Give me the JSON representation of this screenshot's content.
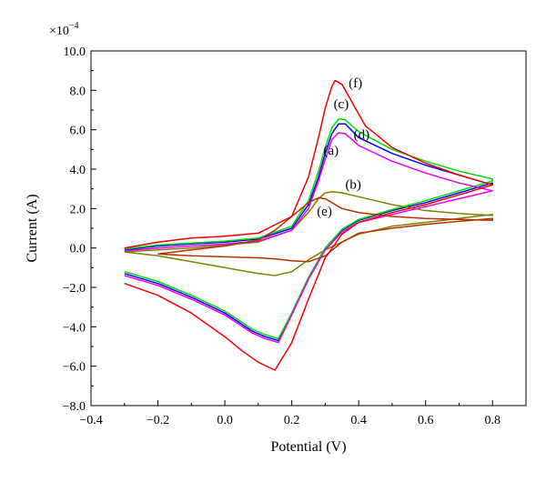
{
  "chart_data": {
    "type": "line",
    "title": "",
    "xlabel": "Potential (V)",
    "ylabel": "Current (A)",
    "y_multiplier": "×10",
    "y_multiplier_exponent": "−4",
    "xlim": [
      -0.4,
      0.9
    ],
    "ylim": [
      -8.0,
      10.0
    ],
    "x_ticks": [
      -0.4,
      -0.2,
      0.0,
      0.2,
      0.4,
      0.6,
      0.8
    ],
    "x_tick_labels": [
      "−0.4",
      "−0.2",
      "0.0",
      "0.2",
      "0.4",
      "0.6",
      "0.8"
    ],
    "y_ticks": [
      -8,
      -6,
      -4,
      -2,
      0,
      2,
      4,
      6,
      8,
      10
    ],
    "y_tick_labels": [
      "−8.0",
      "−6.0",
      "−4.0",
      "−2.0",
      "0.0",
      "2.0",
      "4.0",
      "6.0",
      "8.0",
      "10.0"
    ],
    "grid": false,
    "series": [
      {
        "name": "(a)",
        "color": "#0000ff",
        "x": [
          -0.3,
          -0.2,
          -0.1,
          0.0,
          0.1,
          0.2,
          0.25,
          0.28,
          0.3,
          0.32,
          0.34,
          0.36,
          0.4,
          0.5,
          0.6,
          0.7,
          0.8,
          0.8,
          0.7,
          0.6,
          0.5,
          0.4,
          0.35,
          0.3,
          0.25,
          0.2,
          0.16,
          0.12,
          0.08,
          0.0,
          -0.1,
          -0.2,
          -0.3
        ],
        "y": [
          -0.1,
          0.1,
          0.2,
          0.3,
          0.45,
          1.0,
          2.2,
          3.6,
          4.8,
          5.8,
          6.3,
          6.3,
          5.6,
          4.8,
          4.2,
          3.7,
          3.2,
          3.3,
          2.8,
          2.3,
          1.9,
          1.4,
          0.9,
          0.0,
          -1.5,
          -3.3,
          -4.7,
          -4.5,
          -4.2,
          -3.3,
          -2.5,
          -1.8,
          -1.3
        ]
      },
      {
        "name": "(b)",
        "color": "#808000",
        "x": [
          -0.3,
          -0.2,
          -0.1,
          0.0,
          0.1,
          0.2,
          0.25,
          0.28,
          0.3,
          0.32,
          0.35,
          0.4,
          0.5,
          0.6,
          0.7,
          0.8,
          0.8,
          0.7,
          0.6,
          0.5,
          0.4,
          0.3,
          0.25,
          0.2,
          0.15,
          0.1,
          0.0,
          -0.1,
          -0.2,
          -0.3
        ],
        "y": [
          -0.2,
          -0.1,
          0.0,
          0.15,
          0.3,
          0.9,
          1.8,
          2.5,
          2.8,
          2.85,
          2.8,
          2.6,
          2.2,
          1.9,
          1.75,
          1.65,
          1.7,
          1.5,
          1.3,
          1.1,
          0.7,
          -0.1,
          -0.6,
          -1.2,
          -1.4,
          -1.3,
          -1.0,
          -0.7,
          -0.4,
          -0.2
        ]
      },
      {
        "name": "(c)",
        "color": "#00dd00",
        "x": [
          -0.3,
          -0.2,
          -0.1,
          0.0,
          0.1,
          0.2,
          0.25,
          0.28,
          0.3,
          0.32,
          0.34,
          0.36,
          0.4,
          0.5,
          0.6,
          0.7,
          0.8,
          0.8,
          0.7,
          0.6,
          0.5,
          0.4,
          0.35,
          0.3,
          0.25,
          0.2,
          0.16,
          0.12,
          0.08,
          0.0,
          -0.1,
          -0.2,
          -0.3
        ],
        "y": [
          -0.05,
          0.15,
          0.25,
          0.35,
          0.5,
          1.1,
          2.4,
          3.9,
          5.1,
          6.1,
          6.55,
          6.5,
          5.9,
          5.0,
          4.4,
          3.9,
          3.5,
          3.4,
          2.9,
          2.4,
          1.95,
          1.45,
          0.95,
          0.0,
          -1.5,
          -3.3,
          -4.6,
          -4.4,
          -4.1,
          -3.2,
          -2.4,
          -1.7,
          -1.2
        ]
      },
      {
        "name": "(d)",
        "color": "#ee00ee",
        "x": [
          -0.3,
          -0.2,
          -0.1,
          0.0,
          0.1,
          0.2,
          0.25,
          0.28,
          0.3,
          0.32,
          0.34,
          0.36,
          0.4,
          0.5,
          0.6,
          0.7,
          0.8,
          0.8,
          0.7,
          0.6,
          0.5,
          0.4,
          0.35,
          0.3,
          0.25,
          0.2,
          0.16,
          0.12,
          0.08,
          0.0,
          -0.1,
          -0.2,
          -0.3
        ],
        "y": [
          -0.15,
          0.0,
          0.1,
          0.2,
          0.35,
          0.9,
          2.0,
          3.4,
          4.5,
          5.5,
          5.85,
          5.8,
          5.2,
          4.4,
          3.8,
          3.3,
          2.9,
          2.9,
          2.5,
          2.1,
          1.7,
          1.3,
          0.8,
          -0.1,
          -1.6,
          -3.4,
          -4.8,
          -4.6,
          -4.3,
          -3.4,
          -2.6,
          -1.9,
          -1.4
        ]
      },
      {
        "name": "(e)",
        "color": "#b83000",
        "x": [
          -0.2,
          -0.1,
          0.0,
          0.1,
          0.15,
          0.2,
          0.25,
          0.28,
          0.3,
          0.32,
          0.35,
          0.4,
          0.5,
          0.6,
          0.7,
          0.8,
          0.8,
          0.7,
          0.6,
          0.5,
          0.4,
          0.35,
          0.3,
          0.25,
          0.2,
          0.15,
          0.1,
          0.0,
          -0.1,
          -0.2
        ],
        "y": [
          -0.3,
          -0.1,
          0.1,
          0.4,
          0.9,
          1.6,
          2.3,
          2.55,
          2.5,
          2.3,
          2.0,
          1.8,
          1.6,
          1.5,
          1.45,
          1.4,
          1.5,
          1.35,
          1.2,
          1.0,
          0.75,
          0.3,
          -0.4,
          -0.7,
          -0.65,
          -0.55,
          -0.5,
          -0.45,
          -0.4,
          -0.3
        ]
      },
      {
        "name": "(f)",
        "color": "#ee0000",
        "x": [
          -0.3,
          -0.2,
          -0.1,
          0.0,
          0.1,
          0.2,
          0.25,
          0.28,
          0.3,
          0.32,
          0.33,
          0.35,
          0.38,
          0.42,
          0.5,
          0.6,
          0.7,
          0.8,
          0.8,
          0.7,
          0.6,
          0.5,
          0.4,
          0.35,
          0.3,
          0.25,
          0.2,
          0.15,
          0.1,
          0.05,
          0.0,
          -0.1,
          -0.2,
          -0.3
        ],
        "y": [
          0.0,
          0.3,
          0.5,
          0.6,
          0.75,
          1.6,
          3.6,
          5.6,
          7.1,
          8.2,
          8.5,
          8.3,
          7.4,
          6.2,
          5.1,
          4.3,
          3.7,
          3.2,
          3.2,
          2.7,
          2.2,
          1.8,
          1.3,
          0.7,
          -0.5,
          -2.6,
          -4.8,
          -6.2,
          -5.8,
          -5.2,
          -4.5,
          -3.3,
          -2.4,
          -1.8
        ]
      }
    ],
    "annotations": [
      {
        "text": "(a)",
        "x": 0.295,
        "y": 4.75
      },
      {
        "text": "(b)",
        "x": 0.36,
        "y": 3.0
      },
      {
        "text": "(c)",
        "x": 0.325,
        "y": 7.1
      },
      {
        "text": "(d)",
        "x": 0.385,
        "y": 5.55
      },
      {
        "text": "(e)",
        "x": 0.275,
        "y": 1.65
      },
      {
        "text": "(f)",
        "x": 0.37,
        "y": 8.15
      }
    ]
  }
}
